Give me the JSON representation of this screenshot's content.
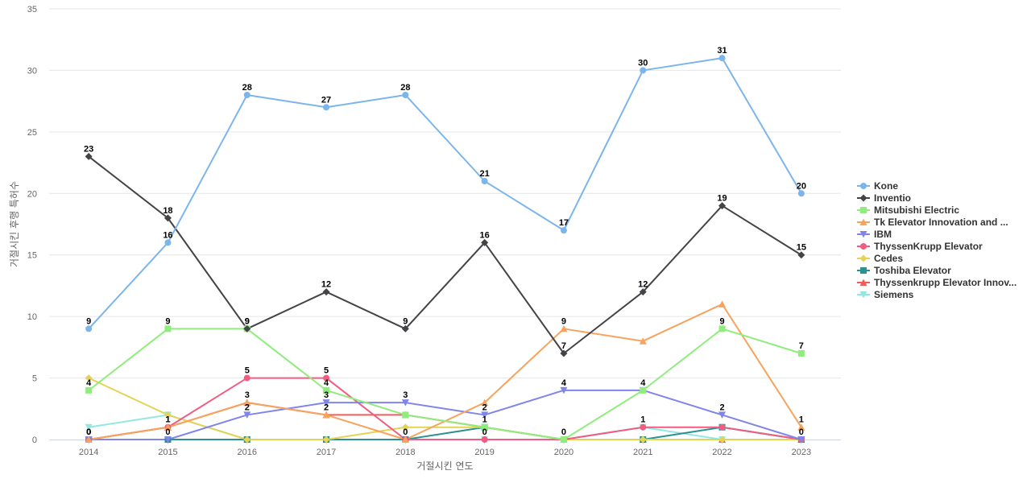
{
  "chart_data": {
    "type": "line",
    "xlabel": "거절시킨 연도",
    "ylabel": "거절시킨 후행 특허수",
    "ylim": [
      0,
      35
    ],
    "yticks": [
      0,
      5,
      10,
      15,
      20,
      25,
      30,
      35
    ],
    "grid": true,
    "legend_position": "right",
    "categories": [
      "2014",
      "2015",
      "2016",
      "2017",
      "2018",
      "2019",
      "2020",
      "2021",
      "2022",
      "2023"
    ],
    "series": [
      {
        "name": "Kone",
        "color": "#7cb5ec",
        "marker": "circle",
        "values": [
          9,
          16,
          28,
          27,
          28,
          21,
          17,
          30,
          31,
          20
        ]
      },
      {
        "name": "Inventio",
        "color": "#434348",
        "marker": "diamond",
        "values": [
          23,
          18,
          9,
          12,
          9,
          16,
          7,
          12,
          19,
          15
        ]
      },
      {
        "name": "Mitsubishi Electric",
        "color": "#90ed7d",
        "marker": "square",
        "values": [
          4,
          9,
          9,
          4,
          2,
          1,
          0,
          4,
          9,
          7
        ]
      },
      {
        "name": "Tk Elevator Innovation and ...",
        "color": "#f7a35c",
        "marker": "triangle",
        "values": [
          0,
          1,
          3,
          2,
          0,
          3,
          9,
          8,
          11,
          1
        ]
      },
      {
        "name": "IBM",
        "color": "#8085e9",
        "marker": "triangle-down",
        "values": [
          0,
          0,
          2,
          3,
          3,
          2,
          4,
          4,
          2,
          0
        ]
      },
      {
        "name": "ThyssenKrupp Elevator",
        "color": "#f15c80",
        "marker": "circle",
        "values": [
          0,
          1,
          5,
          5,
          0,
          0,
          0,
          1,
          1,
          0
        ]
      },
      {
        "name": "Cedes",
        "color": "#e4d354",
        "marker": "diamond",
        "values": [
          5,
          2,
          0,
          0,
          1,
          1,
          0,
          0,
          0,
          0
        ]
      },
      {
        "name": "Toshiba Elevator",
        "color": "#2b908f",
        "marker": "square",
        "values": [
          0,
          0,
          0,
          0,
          0,
          1,
          0,
          0,
          1,
          0
        ]
      },
      {
        "name": "Thyssenkrupp Elevator Innov...",
        "color": "#f45b5b",
        "marker": "triangle",
        "values": [
          0,
          1,
          3,
          2,
          2,
          1,
          0,
          0,
          0,
          0
        ]
      },
      {
        "name": "Siemens",
        "color": "#91e8e1",
        "marker": "triangle-down",
        "values": [
          1,
          2,
          0,
          0,
          0,
          0,
          0,
          1,
          0,
          0
        ]
      }
    ],
    "labeled_points": [
      [
        0,
        0
      ],
      [
        0,
        1
      ],
      [
        0,
        2
      ],
      [
        0,
        3
      ],
      [
        0,
        4
      ],
      [
        0,
        5
      ],
      [
        0,
        6
      ],
      [
        0,
        7
      ],
      [
        0,
        8
      ],
      [
        0,
        9
      ],
      [
        1,
        0
      ],
      [
        1,
        1
      ],
      [
        1,
        2
      ],
      [
        1,
        3
      ],
      [
        1,
        4
      ],
      [
        1,
        5
      ],
      [
        1,
        6
      ],
      [
        1,
        7
      ],
      [
        1,
        8
      ],
      [
        1,
        9
      ],
      [
        2,
        0
      ],
      [
        2,
        1
      ],
      [
        2,
        2
      ],
      [
        2,
        3
      ],
      [
        2,
        5
      ],
      [
        2,
        7
      ],
      [
        2,
        8
      ],
      [
        2,
        9
      ],
      [
        3,
        0
      ],
      [
        3,
        1
      ],
      [
        3,
        2
      ],
      [
        3,
        3
      ],
      [
        3,
        4
      ],
      [
        3,
        6
      ],
      [
        3,
        9
      ],
      [
        4,
        0
      ],
      [
        4,
        1
      ],
      [
        4,
        2
      ],
      [
        4,
        3
      ],
      [
        4,
        4
      ],
      [
        4,
        5
      ],
      [
        4,
        6
      ],
      [
        4,
        8
      ],
      [
        4,
        9
      ],
      [
        5,
        0
      ],
      [
        5,
        1
      ],
      [
        5,
        2
      ],
      [
        5,
        3
      ],
      [
        5,
        5
      ],
      [
        5,
        6
      ],
      [
        5,
        7
      ]
    ]
  }
}
